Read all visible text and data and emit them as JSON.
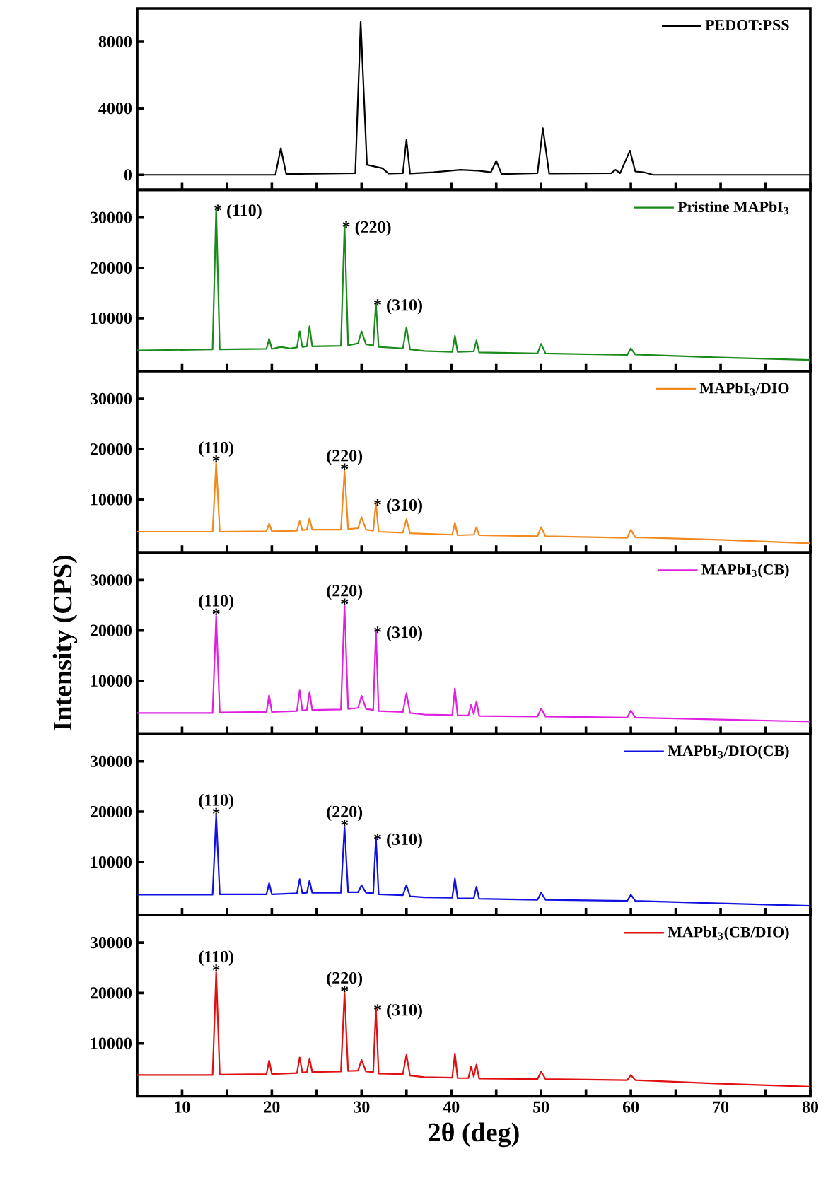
{
  "chart_data": [
    {
      "type": "line",
      "xlim": [
        5,
        80
      ],
      "xticks": [
        10,
        {
          "value": 15,
          "label": null
        },
        20,
        {
          "value": 25,
          "label": null
        },
        30,
        {
          "value": 35,
          "label": null
        },
        40,
        {
          "value": 45,
          "label": null
        },
        50,
        {
          "value": 55,
          "label": null
        },
        60,
        {
          "value": 65,
          "label": null
        },
        70,
        {
          "value": 75,
          "label": null
        },
        80
      ],
      "ylim": [
        -900,
        10000
      ],
      "yticks": [
        0,
        4000,
        8000
      ],
      "tick_labels": "y",
      "legend": "top right",
      "x": [
        5,
        20.4,
        21.0,
        21.6,
        29.3,
        29.9,
        30.6,
        32.3,
        33,
        34.6,
        35.0,
        35.4,
        38,
        41,
        43,
        44.4,
        45.0,
        45.6,
        49.6,
        50.2,
        50.9,
        57.8,
        58.3,
        58.8,
        59.9,
        60.5,
        61.5,
        62.5,
        80
      ],
      "series": [
        {
          "name": "PEDOT:PSS",
          "color": "#000000",
          "values": [
            0,
            0,
            1600,
            50,
            100,
            9200,
            600,
            400,
            80,
            100,
            2100,
            80,
            150,
            300,
            250,
            150,
            840,
            50,
            100,
            2800,
            80,
            100,
            300,
            100,
            1450,
            200,
            150,
            0,
            0
          ]
        }
      ]
    },
    {
      "type": "line",
      "xlim": [
        5,
        80
      ],
      "xticks": [
        10,
        {
          "value": 15,
          "label": null
        },
        20,
        {
          "value": 25,
          "label": null
        },
        30,
        {
          "value": 35,
          "label": null
        },
        40,
        {
          "value": 45,
          "label": null
        },
        50,
        {
          "value": 55,
          "label": null
        },
        60,
        {
          "value": 65,
          "label": null
        },
        70,
        {
          "value": 75,
          "label": null
        },
        80
      ],
      "ylim": [
        -500,
        35500
      ],
      "yticks": [
        10000,
        20000,
        30000
      ],
      "tick_labels": "y",
      "legend": "top right",
      "x": [
        5,
        13.4,
        13.8,
        14.2,
        19.4,
        19.7,
        20.0,
        21,
        22,
        22.8,
        23.1,
        23.4,
        23.9,
        24.2,
        24.5,
        27.7,
        28.1,
        28.5,
        29.6,
        30.0,
        30.5,
        31.3,
        31.6,
        31.9,
        34.6,
        35.0,
        35.4,
        37,
        40.1,
        40.4,
        40.7,
        42.5,
        42.8,
        43.1,
        49.6,
        50.0,
        50.5,
        59.6,
        60.0,
        60.5,
        70,
        80
      ],
      "series": [
        {
          "name": "Pristine MAPbI$_{3}$",
          "color": "#1a8a1a",
          "values": [
            3600,
            3800,
            31800,
            3800,
            3900,
            5900,
            3900,
            4300,
            4000,
            4200,
            7400,
            4300,
            4400,
            8400,
            4400,
            4500,
            28500,
            4600,
            5000,
            7400,
            4800,
            4600,
            13000,
            4300,
            4000,
            8200,
            3800,
            3500,
            3300,
            6500,
            3300,
            3400,
            5600,
            3200,
            3000,
            4900,
            3000,
            2700,
            4000,
            2800,
            2200,
            1700
          ]
        }
      ],
      "annotations": [
        {
          "text": "* (110)",
          "x": 13.8,
          "y": 31800
        },
        {
          "text": "* (220)",
          "x": 28.1,
          "y": 28500
        },
        {
          "text": "* (310)",
          "x": 31.6,
          "y": 13000
        }
      ]
    },
    {
      "type": "line",
      "xlim": [
        5,
        80
      ],
      "xticks": [
        10,
        {
          "value": 15,
          "label": null
        },
        20,
        {
          "value": 25,
          "label": null
        },
        30,
        {
          "value": 35,
          "label": null
        },
        40,
        {
          "value": 45,
          "label": null
        },
        50,
        {
          "value": 55,
          "label": null
        },
        60,
        {
          "value": 65,
          "label": null
        },
        70,
        {
          "value": 75,
          "label": null
        },
        80
      ],
      "ylim": [
        -500,
        35500
      ],
      "yticks": [
        10000,
        20000,
        30000
      ],
      "tick_labels": "y",
      "legend": "top right",
      "x": [
        5,
        13.4,
        13.8,
        14.2,
        19.4,
        19.7,
        20.0,
        22.8,
        23.1,
        23.4,
        23.9,
        24.2,
        24.5,
        27.7,
        28.1,
        28.5,
        29.6,
        30.0,
        30.5,
        31.3,
        31.6,
        31.9,
        34.6,
        35.0,
        35.4,
        37,
        40.1,
        40.4,
        40.7,
        42.5,
        42.8,
        43.1,
        49.6,
        50.0,
        50.5,
        59.6,
        60.0,
        60.5,
        70,
        80
      ],
      "series": [
        {
          "name": "MAPbI$_{3}$/DIO",
          "color": "#f08a1e",
          "values": [
            3600,
            3600,
            17300,
            3600,
            3700,
            5200,
            3700,
            3800,
            5700,
            3900,
            4000,
            6300,
            4000,
            4000,
            15700,
            4100,
            4300,
            6500,
            4000,
            3800,
            9300,
            3600,
            3400,
            6100,
            3300,
            3200,
            3000,
            5400,
            2900,
            3000,
            4500,
            2900,
            2700,
            4500,
            2700,
            2400,
            4000,
            2500,
            2000,
            1300
          ]
        }
      ],
      "annotations": [
        {
          "text": "*",
          "x": 13.8,
          "y": 17300
        },
        {
          "text": "(110)",
          "x": 13.8,
          "y": 17300
        },
        {
          "text": "*",
          "x": 28.1,
          "y": 15700
        },
        {
          "text": "(220)",
          "x": 28.1,
          "y": 15700
        },
        {
          "text": "* (310)",
          "x": 31.6,
          "y": 9300
        }
      ]
    },
    {
      "type": "line",
      "xlim": [
        5,
        80
      ],
      "xticks": [
        10,
        {
          "value": 15,
          "label": null
        },
        20,
        {
          "value": 25,
          "label": null
        },
        30,
        {
          "value": 35,
          "label": null
        },
        40,
        {
          "value": 45,
          "label": null
        },
        50,
        {
          "value": 55,
          "label": null
        },
        60,
        {
          "value": 65,
          "label": null
        },
        70,
        {
          "value": 75,
          "label": null
        },
        80
      ],
      "ylim": [
        -500,
        35500
      ],
      "yticks": [
        10000,
        20000,
        30000
      ],
      "tick_labels": "y",
      "legend": "top right",
      "ylabel": "Intensity (CPS)",
      "x": [
        5,
        13.4,
        13.8,
        14.2,
        19.4,
        19.7,
        20.0,
        22.8,
        23.1,
        23.4,
        23.9,
        24.2,
        24.5,
        27.7,
        28.1,
        28.5,
        29.6,
        30.0,
        30.5,
        31.3,
        31.6,
        31.9,
        34.6,
        35.0,
        35.4,
        37,
        40.1,
        40.4,
        40.7,
        41.9,
        42.2,
        42.5,
        42.8,
        43.1,
        49.6,
        50.0,
        50.5,
        59.6,
        60.0,
        60.5,
        70,
        80
      ],
      "series": [
        {
          "name": "MAPbI$_{3}$(CB)",
          "color": "#e020e0",
          "values": [
            3600,
            3600,
            22900,
            3700,
            3800,
            7100,
            3800,
            4000,
            8100,
            4100,
            4200,
            7800,
            4200,
            4300,
            24900,
            4400,
            4600,
            7000,
            4400,
            4200,
            20000,
            4000,
            3800,
            7500,
            3600,
            3300,
            3200,
            8500,
            3100,
            3100,
            5200,
            3400,
            5900,
            3000,
            2900,
            4500,
            2900,
            2700,
            4100,
            2700,
            2300,
            1900
          ]
        }
      ],
      "annotations": [
        {
          "text": "*",
          "x": 13.8,
          "y": 22900
        },
        {
          "text": "(110)",
          "x": 13.8,
          "y": 22900
        },
        {
          "text": "*",
          "x": 28.1,
          "y": 24900
        },
        {
          "text": "(220)",
          "x": 28.1,
          "y": 24900
        },
        {
          "text": "* (310)",
          "x": 31.6,
          "y": 20000
        }
      ]
    },
    {
      "type": "line",
      "xlim": [
        5,
        80
      ],
      "xticks": [
        10,
        {
          "value": 15,
          "label": null
        },
        20,
        {
          "value": 25,
          "label": null
        },
        30,
        {
          "value": 35,
          "label": null
        },
        40,
        {
          "value": 45,
          "label": null
        },
        50,
        {
          "value": 55,
          "label": null
        },
        60,
        {
          "value": 65,
          "label": null
        },
        70,
        {
          "value": 75,
          "label": null
        },
        80
      ],
      "ylim": [
        -500,
        35500
      ],
      "yticks": [
        10000,
        20000,
        30000
      ],
      "tick_labels": "y",
      "legend": "top right",
      "x": [
        5,
        13.4,
        13.8,
        14.2,
        19.4,
        19.7,
        20.0,
        22.8,
        23.1,
        23.4,
        23.9,
        24.2,
        24.5,
        27.7,
        28.1,
        28.5,
        29.6,
        30.0,
        30.5,
        31.3,
        31.6,
        31.9,
        34.6,
        35.0,
        35.4,
        37,
        40.1,
        40.4,
        40.7,
        42.5,
        42.8,
        43.1,
        49.6,
        50.0,
        50.5,
        59.6,
        60.0,
        60.5,
        70,
        80
      ],
      "series": [
        {
          "name": "MAPbI$_{3}$/DIO(CB)",
          "color": "#1010e0",
          "values": [
            3500,
            3500,
            19300,
            3600,
            3600,
            5800,
            3600,
            3800,
            6600,
            3800,
            3900,
            6300,
            3900,
            3900,
            17000,
            4000,
            4000,
            5400,
            3900,
            3800,
            14900,
            3600,
            3400,
            5400,
            3200,
            3000,
            2900,
            6700,
            2800,
            2800,
            5100,
            2700,
            2500,
            3900,
            2500,
            2300,
            3500,
            2300,
            1800,
            1300
          ]
        }
      ],
      "annotations": [
        {
          "text": "*",
          "x": 13.8,
          "y": 19300
        },
        {
          "text": "(110)",
          "x": 13.8,
          "y": 19300
        },
        {
          "text": "*",
          "x": 28.1,
          "y": 17000
        },
        {
          "text": "(220)",
          "x": 28.1,
          "y": 17000
        },
        {
          "text": "* (310)",
          "x": 31.6,
          "y": 14900
        }
      ]
    },
    {
      "type": "line",
      "xlim": [
        5,
        80
      ],
      "xticks": [
        10,
        {
          "value": 15,
          "label": null
        },
        20,
        {
          "value": 25,
          "label": null
        },
        30,
        {
          "value": 35,
          "label": null
        },
        40,
        {
          "value": 45,
          "label": null
        },
        50,
        {
          "value": 55,
          "label": null
        },
        60,
        {
          "value": 65,
          "label": null
        },
        70,
        {
          "value": 75,
          "label": null
        },
        80
      ],
      "ylim": [
        -500,
        35500
      ],
      "yticks": [
        10000,
        20000,
        30000
      ],
      "legend": "top right",
      "xlabel": "2θ (deg)",
      "x": [
        5,
        13.4,
        13.8,
        14.2,
        19.4,
        19.7,
        20.0,
        22.8,
        23.1,
        23.4,
        23.9,
        24.2,
        24.5,
        27.7,
        28.1,
        28.5,
        29.6,
        30.0,
        30.5,
        31.3,
        31.6,
        31.9,
        34.6,
        35.0,
        35.4,
        37,
        40.1,
        40.4,
        40.7,
        41.9,
        42.2,
        42.5,
        42.8,
        43.1,
        49.6,
        50.0,
        50.5,
        59.6,
        60.0,
        60.5,
        70,
        80
      ],
      "series": [
        {
          "name": "MAPbI$_{3}$(CB/DIO)",
          "color": "#e01010",
          "values": [
            3700,
            3700,
            24200,
            3800,
            3900,
            6600,
            3900,
            4100,
            7200,
            4200,
            4300,
            7000,
            4300,
            4400,
            20000,
            4500,
            4600,
            6700,
            4400,
            4300,
            17000,
            4000,
            3900,
            7700,
            3600,
            3300,
            3200,
            8000,
            3100,
            3100,
            5400,
            3400,
            5800,
            3000,
            2900,
            4400,
            2900,
            2700,
            3700,
            2700,
            2000,
            1400
          ]
        }
      ],
      "annotations": [
        {
          "text": "*",
          "x": 13.8,
          "y": 24200
        },
        {
          "text": "(110)",
          "x": 13.8,
          "y": 24200
        },
        {
          "text": "*",
          "x": 28.1,
          "y": 20000
        },
        {
          "text": "(220)",
          "x": 28.1,
          "y": 20000
        },
        {
          "text": "* (310)",
          "x": 31.6,
          "y": 17000
        }
      ]
    }
  ]
}
